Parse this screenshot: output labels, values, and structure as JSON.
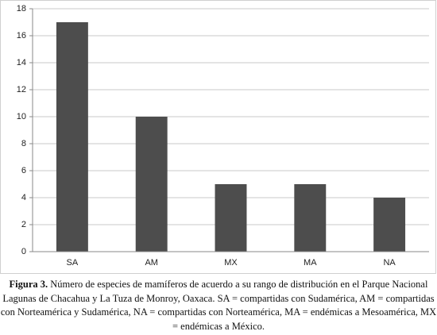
{
  "chart_data": {
    "type": "bar",
    "categories": [
      "SA",
      "AM",
      "MX",
      "MA",
      "NA"
    ],
    "values": [
      17,
      10,
      5,
      5,
      4
    ],
    "color": "#4d4d4d",
    "ylim": [
      0,
      18
    ],
    "yticks": [
      0,
      2,
      4,
      6,
      8,
      10,
      12,
      14,
      16,
      18
    ],
    "grid": true,
    "caption_label": "Figura 3.",
    "caption": "Número de especies de mamíferos de acuerdo a su rango de distribución en el Parque Nacional Lagunas de Chacahua y La Tuza de Monroy, Oaxaca. SA = compartidas con Sudamérica, AM = compartidas con Norteamérica y Sudamérica, NA = compartidas con Norteamérica, MA = endémicas a Mesoamérica, MX = endémicas a México."
  }
}
